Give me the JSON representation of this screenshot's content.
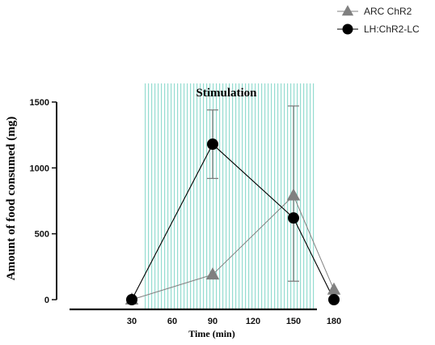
{
  "chart_data": {
    "type": "line",
    "title": "",
    "xlabel": "Time (min)",
    "ylabel": "Amount of food consumed (mg)",
    "xlim": [
      0,
      180
    ],
    "ylim": [
      0,
      1500
    ],
    "x_ticks": [
      30,
      60,
      90,
      120,
      150,
      180
    ],
    "y_ticks": [
      0,
      500,
      1000,
      1500
    ],
    "annotation": "Stimulation",
    "stimulation_region": [
      40,
      165
    ],
    "grid": false,
    "legend_position": "top-right",
    "series": [
      {
        "name": "ARC ChR2",
        "marker": "triangle",
        "color": "#808080",
        "x": [
          30,
          90,
          150,
          180
        ],
        "y": [
          0,
          190,
          790,
          75
        ]
      },
      {
        "name": "LH:ChR2-LC",
        "marker": "circle",
        "color": "#000000",
        "x": [
          30,
          90,
          150,
          180
        ],
        "y": [
          0,
          1180,
          620,
          0
        ],
        "error": [
          [
            0,
            0
          ],
          [
            920,
            1440
          ],
          [
            140,
            1470
          ],
          [
            0,
            0
          ]
        ]
      }
    ]
  },
  "colors": {
    "stimulation_stripe": "#7fd6c6",
    "axis": "#111111"
  }
}
